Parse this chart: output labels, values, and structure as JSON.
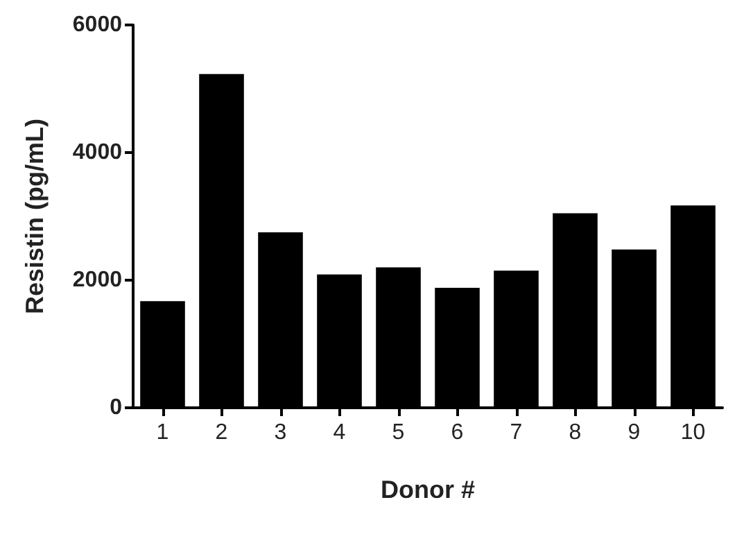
{
  "chart_data": {
    "type": "bar",
    "xlabel": "Donor #",
    "ylabel": "Resistin (pg/mL)",
    "categories": [
      "1",
      "2",
      "3",
      "4",
      "5",
      "6",
      "7",
      "8",
      "9",
      "10"
    ],
    "values": [
      1670,
      5230,
      2750,
      2090,
      2200,
      1880,
      2150,
      3050,
      2480,
      3170
    ],
    "color": "#000000",
    "ylim": [
      0,
      6000
    ],
    "yticks": [
      0,
      2000,
      4000,
      6000
    ],
    "grid": false
  }
}
